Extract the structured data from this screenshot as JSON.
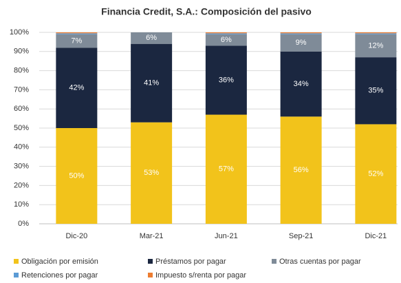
{
  "chart_data": {
    "type": "stacked_bar",
    "title": "Financia Credit, S.A.: Composición del pasivo",
    "categories": [
      "Dic-20",
      "Mar-21",
      "Jun-21",
      "Sep-21",
      "Dic-21"
    ],
    "series": [
      {
        "name": "Obligación por emisión",
        "color": "#f2c31b",
        "values": [
          50,
          53,
          57,
          56,
          52
        ],
        "value_labels": [
          "50%",
          "53%",
          "57%",
          "56%",
          "52%"
        ]
      },
      {
        "name": "Préstamos por pagar",
        "color": "#1b2740",
        "values": [
          42,
          41,
          36,
          34,
          35
        ],
        "value_labels": [
          "42%",
          "41%",
          "36%",
          "34%",
          "35%"
        ]
      },
      {
        "name": "Otras cuentas por pagar",
        "color": "#7f8b98",
        "values": [
          7,
          6,
          6,
          9,
          12
        ],
        "value_labels": [
          "7%",
          "6%",
          "6%",
          "9%",
          "12%"
        ]
      },
      {
        "name": "Retenciones por pagar",
        "color": "#5b9bd5",
        "values": [
          0.5,
          0,
          0.5,
          0.5,
          0.5
        ]
      },
      {
        "name": "Impuesto s/renta por pagar",
        "color": "#ed7d31",
        "values": [
          0.5,
          0,
          0.5,
          0.5,
          0.5
        ]
      }
    ],
    "ylim": [
      0,
      100
    ],
    "yticks": [
      {
        "value": 0,
        "label": "0%"
      },
      {
        "value": 10,
        "label": "10%"
      },
      {
        "value": 20,
        "label": "20%"
      },
      {
        "value": 30,
        "label": "30%"
      },
      {
        "value": 40,
        "label": "40%"
      },
      {
        "value": 50,
        "label": "50%"
      },
      {
        "value": 60,
        "label": "60%"
      },
      {
        "value": 70,
        "label": "70%"
      },
      {
        "value": 80,
        "label": "80%"
      },
      {
        "value": 90,
        "label": "90%"
      },
      {
        "value": 100,
        "label": "100%"
      }
    ],
    "grid": true
  }
}
